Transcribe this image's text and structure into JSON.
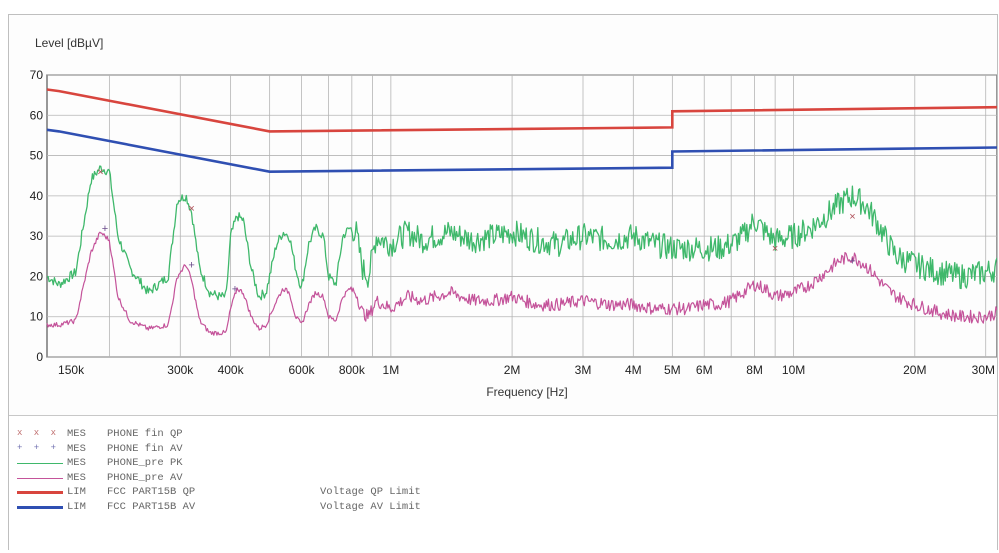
{
  "chart_data": {
    "type": "line",
    "ylabel": "Level [dBµV]",
    "xlabel": "Frequency [Hz]",
    "x_scale": "log",
    "xlim": [
      140000,
      32000000
    ],
    "ylim": [
      0,
      70
    ],
    "y_ticks": [
      0,
      10,
      20,
      30,
      40,
      50,
      60,
      70
    ],
    "x_ticks": [
      {
        "value": 150000,
        "label": "150k"
      },
      {
        "value": 300000,
        "label": "300k"
      },
      {
        "value": 400000,
        "label": "400k"
      },
      {
        "value": 600000,
        "label": "600k"
      },
      {
        "value": 800000,
        "label": "800k"
      },
      {
        "value": 1000000,
        "label": "1M"
      },
      {
        "value": 2000000,
        "label": "2M"
      },
      {
        "value": 3000000,
        "label": "3M"
      },
      {
        "value": 4000000,
        "label": "4M"
      },
      {
        "value": 5000000,
        "label": "5M"
      },
      {
        "value": 6000000,
        "label": "6M"
      },
      {
        "value": 8000000,
        "label": "8M"
      },
      {
        "value": 10000000,
        "label": "10M"
      },
      {
        "value": 20000000,
        "label": "20M"
      },
      {
        "value": 30000000,
        "label": "30M"
      }
    ],
    "grid": true,
    "series": [
      {
        "type": "PK",
        "color": "#3fb86b",
        "x": [
          140000,
          150000,
          165000,
          180000,
          190000,
          200000,
          210000,
          225000,
          250000,
          280000,
          295000,
          310000,
          320000,
          335000,
          355000,
          375000,
          390000,
          400000,
          415000,
          430000,
          450000,
          470000,
          490000,
          520000,
          540000,
          560000,
          580000,
          600000,
          625000,
          650000,
          680000,
          700000,
          730000,
          760000,
          790000,
          820000,
          850000,
          880000,
          920000,
          960000,
          1000000,
          1100000,
          1200000,
          1400000,
          1600000,
          1800000,
          2000000,
          2300000,
          2600000,
          3000000,
          3500000,
          4000000,
          4500000,
          5000000,
          5500000,
          6000000,
          6500000,
          7000000,
          7500000,
          8000000,
          8500000,
          9000000,
          10000000,
          11000000,
          12000000,
          13000000,
          14000000,
          15000000,
          16000000,
          17000000,
          18000000,
          20000000,
          23000000,
          26000000,
          30000000,
          32000000
        ],
        "values": [
          20,
          18,
          21,
          44,
          47,
          46,
          30,
          22,
          16,
          20,
          39,
          40,
          36,
          22,
          16,
          15,
          15,
          30,
          35,
          34,
          22,
          15,
          16,
          28,
          31,
          30,
          22,
          17,
          28,
          32,
          30,
          20,
          18,
          30,
          32,
          31,
          22,
          20,
          30,
          29,
          28,
          31,
          29,
          31,
          29,
          30,
          31,
          29,
          28,
          30,
          29,
          30,
          28,
          27,
          27,
          27,
          27,
          28,
          30,
          34,
          31,
          29,
          30,
          32,
          35,
          38,
          40,
          38,
          34,
          29,
          25,
          23,
          21,
          20,
          21,
          22
        ]
      },
      {
        "type": "AV",
        "color": "#c4539a",
        "x": [
          140000,
          150000,
          165000,
          180000,
          190000,
          200000,
          210000,
          225000,
          250000,
          280000,
          295000,
          310000,
          320000,
          335000,
          355000,
          375000,
          390000,
          400000,
          415000,
          430000,
          450000,
          470000,
          490000,
          520000,
          540000,
          560000,
          580000,
          600000,
          625000,
          650000,
          680000,
          700000,
          730000,
          760000,
          790000,
          820000,
          850000,
          880000,
          920000,
          960000,
          1000000,
          1100000,
          1200000,
          1400000,
          1600000,
          1800000,
          2000000,
          2300000,
          2600000,
          3000000,
          3500000,
          4000000,
          4500000,
          5000000,
          5500000,
          6000000,
          6500000,
          7000000,
          7500000,
          8000000,
          8500000,
          9000000,
          10000000,
          11000000,
          12000000,
          13000000,
          14000000,
          15000000,
          16000000,
          17000000,
          18000000,
          20000000,
          23000000,
          26000000,
          30000000,
          32000000
        ],
        "values": [
          8,
          8,
          9,
          26,
          31,
          29,
          15,
          9,
          7,
          8,
          20,
          23,
          19,
          9,
          6,
          6,
          6,
          12,
          17,
          16,
          10,
          7,
          8,
          14,
          17,
          16,
          10,
          8,
          13,
          16,
          15,
          10,
          9,
          15,
          17,
          16,
          11,
          10,
          14,
          13,
          12,
          15,
          14,
          16,
          14,
          14,
          15,
          13,
          13,
          14,
          13,
          13,
          12,
          12,
          12,
          13,
          13,
          14,
          16,
          18,
          17,
          15,
          16,
          18,
          21,
          24,
          25,
          23,
          20,
          17,
          15,
          13,
          11,
          10,
          10,
          11
        ]
      },
      {
        "type": "LIM QP",
        "color": "#d8453e",
        "x": [
          140000,
          150000,
          500000,
          5000000,
          5000001,
          32000000
        ],
        "values": [
          66.4,
          66,
          56,
          57,
          61,
          62
        ]
      },
      {
        "type": "LIM AV",
        "color": "#2f4fb2",
        "x": [
          140000,
          150000,
          500000,
          5000000,
          5000001,
          32000000
        ],
        "values": [
          56.4,
          56,
          46,
          47,
          51,
          52
        ]
      }
    ],
    "markers": [
      {
        "series": "fin QP",
        "x": 190000,
        "y": 46
      },
      {
        "series": "fin QP",
        "x": 320000,
        "y": 37
      },
      {
        "series": "fin QP",
        "x": 9000000,
        "y": 27
      },
      {
        "series": "fin QP",
        "x": 14000000,
        "y": 35
      },
      {
        "series": "fin AV",
        "x": 195000,
        "y": 32
      },
      {
        "series": "fin AV",
        "x": 320000,
        "y": 23
      },
      {
        "series": "fin AV",
        "x": 410000,
        "y": 17
      },
      {
        "series": "fin AV",
        "x": 14000000,
        "y": 24
      }
    ]
  },
  "legend": [
    {
      "marks": "x x x",
      "type": "MES",
      "name": "PHONE fin QP",
      "desc": "",
      "color": "#c07070",
      "style": "marks"
    },
    {
      "marks": "+ + +",
      "type": "MES",
      "name": "PHONE fin AV",
      "desc": "",
      "color": "#7070b0",
      "style": "marks"
    },
    {
      "marks": "",
      "type": "MES",
      "name": "PHONE_pre PK",
      "desc": "",
      "color": "#3fb86b",
      "style": "thin"
    },
    {
      "marks": "",
      "type": "MES",
      "name": "PHONE_pre AV",
      "desc": "",
      "color": "#c4539a",
      "style": "thin"
    },
    {
      "marks": "",
      "type": "LIM",
      "name": "FCC PART15B QP",
      "desc": "Voltage QP Limit",
      "color": "#d8453e",
      "style": "thick"
    },
    {
      "marks": "",
      "type": "LIM",
      "name": "FCC PART15B AV",
      "desc": "Voltage AV Limit",
      "color": "#2f4fb2",
      "style": "thick"
    }
  ]
}
